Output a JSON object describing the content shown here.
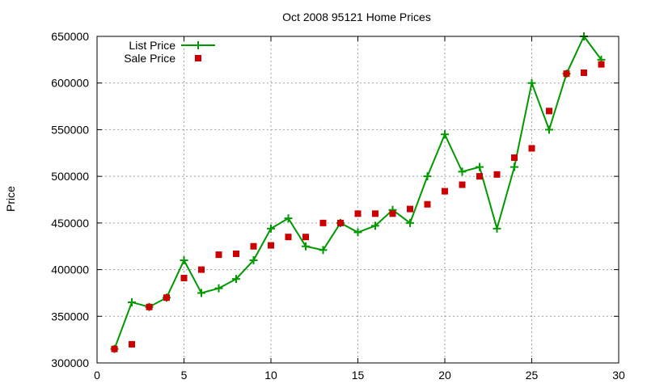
{
  "chart_data": {
    "type": "line",
    "title": "Oct 2008 95121 Home Prices",
    "xlabel": "",
    "ylabel": "Price",
    "xlim": [
      0,
      30
    ],
    "ylim": [
      300000,
      650000
    ],
    "xticks": [
      0,
      5,
      10,
      15,
      20,
      25,
      30
    ],
    "yticks": [
      300000,
      350000,
      400000,
      450000,
      500000,
      550000,
      600000,
      650000
    ],
    "grid": true,
    "legend_position": "top-left",
    "series": [
      {
        "name": "List Price",
        "style": "line-with-plus-markers",
        "color": "#009900",
        "x": [
          1,
          2,
          3,
          4,
          5,
          6,
          7,
          8,
          9,
          10,
          11,
          12,
          13,
          14,
          15,
          16,
          17,
          18,
          19,
          20,
          21,
          22,
          23,
          24,
          25,
          26,
          27,
          28,
          29
        ],
        "y": [
          315000,
          365000,
          360000,
          370000,
          410000,
          375000,
          380000,
          390000,
          410000,
          444000,
          455000,
          425000,
          421000,
          450000,
          440000,
          447000,
          464000,
          450000,
          500000,
          545000,
          505000,
          510000,
          444000,
          510000,
          600000,
          550000,
          610000,
          650000,
          625000
        ]
      },
      {
        "name": "Sale Price",
        "style": "square-markers",
        "color": "#cc0000",
        "x": [
          1,
          2,
          3,
          4,
          5,
          6,
          7,
          8,
          9,
          10,
          11,
          12,
          13,
          14,
          15,
          16,
          17,
          18,
          19,
          20,
          21,
          22,
          23,
          24,
          25,
          26,
          27,
          28,
          29
        ],
        "y": [
          315000,
          320000,
          360000,
          370000,
          391000,
          400000,
          416000,
          417000,
          425000,
          426000,
          435000,
          435000,
          450000,
          450000,
          460000,
          460000,
          460000,
          465000,
          470000,
          484000,
          491000,
          500000,
          502000,
          520000,
          530000,
          570000,
          610000,
          611000,
          620000
        ]
      }
    ]
  }
}
